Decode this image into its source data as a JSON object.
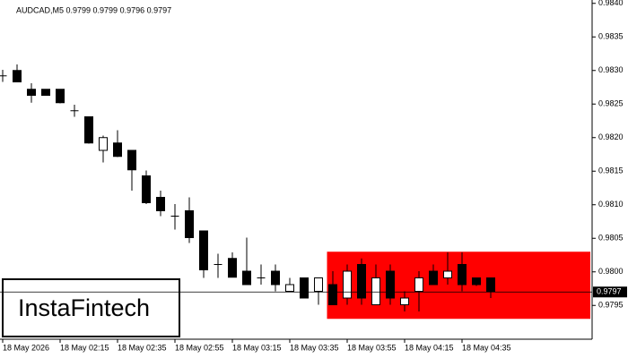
{
  "chart_data": {
    "type": "candlestick",
    "title": "AUDCAD,M5  0.9799 0.9799 0.9796 0.9797",
    "watermark": "InstaFintech",
    "categories": [
      "18 May 2026",
      null,
      null,
      null,
      "18 May 02:15",
      null,
      null,
      null,
      "18 May 02:35",
      null,
      null,
      null,
      "18 May 02:55",
      null,
      null,
      null,
      "18 May 03:15",
      null,
      null,
      null,
      "18 May 03:35",
      null,
      null,
      null,
      "18 May 03:55",
      null,
      null,
      null,
      "18 May 04:15",
      null,
      null,
      null,
      "18 May 04:35",
      null,
      null
    ],
    "open": [
      0.98292,
      0.983,
      0.98272,
      0.98272,
      0.98272,
      0.9824,
      0.98231,
      0.98181,
      0.98192,
      0.98181,
      0.98143,
      0.98111,
      0.98083,
      0.98091,
      0.98061,
      0.98011,
      0.9802,
      0.98001,
      0.97991,
      0.98001,
      0.97971,
      0.97991,
      0.97971,
      0.97981,
      0.97961,
      0.98011,
      0.97951,
      0.98001,
      0.97951,
      0.97971,
      0.98001,
      0.97991,
      0.98011,
      0.97991,
      0.97991
    ],
    "high": [
      0.98301,
      0.98309,
      0.98281,
      0.98272,
      0.98272,
      0.98249,
      0.98231,
      0.98203,
      0.98211,
      0.98181,
      0.98151,
      0.98121,
      0.98101,
      0.98111,
      0.98061,
      0.98027,
      0.98029,
      0.98051,
      0.98011,
      0.98011,
      0.97991,
      0.97991,
      0.97991,
      0.98001,
      0.98011,
      0.9802,
      0.98011,
      0.98011,
      0.97971,
      0.98001,
      0.98011,
      0.98029,
      0.98029,
      0.97991,
      0.97991
    ],
    "low": [
      0.98283,
      0.98283,
      0.98252,
      0.98263,
      0.98251,
      0.98231,
      0.98191,
      0.98163,
      0.98171,
      0.98121,
      0.98101,
      0.98083,
      0.98063,
      0.98043,
      0.97991,
      0.97991,
      0.97992,
      0.97981,
      0.97981,
      0.97971,
      0.97971,
      0.97961,
      0.97951,
      0.97951,
      0.97951,
      0.97951,
      0.97951,
      0.97951,
      0.97941,
      0.97941,
      0.97981,
      0.97981,
      0.97971,
      0.97979,
      0.97961
    ],
    "close": [
      0.98292,
      0.98283,
      0.98263,
      0.98263,
      0.98252,
      0.9824,
      0.98192,
      0.982,
      0.98172,
      0.98152,
      0.98103,
      0.98091,
      0.98083,
      0.98051,
      0.98003,
      0.98011,
      0.97992,
      0.97981,
      0.97991,
      0.97981,
      0.97981,
      0.97961,
      0.97991,
      0.97951,
      0.98001,
      0.97961,
      0.97991,
      0.97961,
      0.97961,
      0.97991,
      0.97981,
      0.98001,
      0.97981,
      0.97981,
      0.97971
    ],
    "up_color": "#ffffff",
    "down_color": "#000000",
    "zone": {
      "top": 0.9803,
      "bottom": 0.9793,
      "color": "#ff0000"
    },
    "last_price": 0.9797,
    "ylim": [
      0.979,
      0.98405
    ],
    "yticks": [
      {
        "value": 0.984,
        "label": "0.9840"
      },
      0.9835,
      {
        "value": 0.983,
        "label": "0.9830"
      },
      0.9825,
      {
        "value": 0.982,
        "label": "0.9820"
      },
      0.9815,
      {
        "value": 0.981,
        "label": "0.9810"
      },
      0.9805,
      {
        "value": 0.98,
        "label": "0.9800"
      },
      0.9795
    ]
  }
}
